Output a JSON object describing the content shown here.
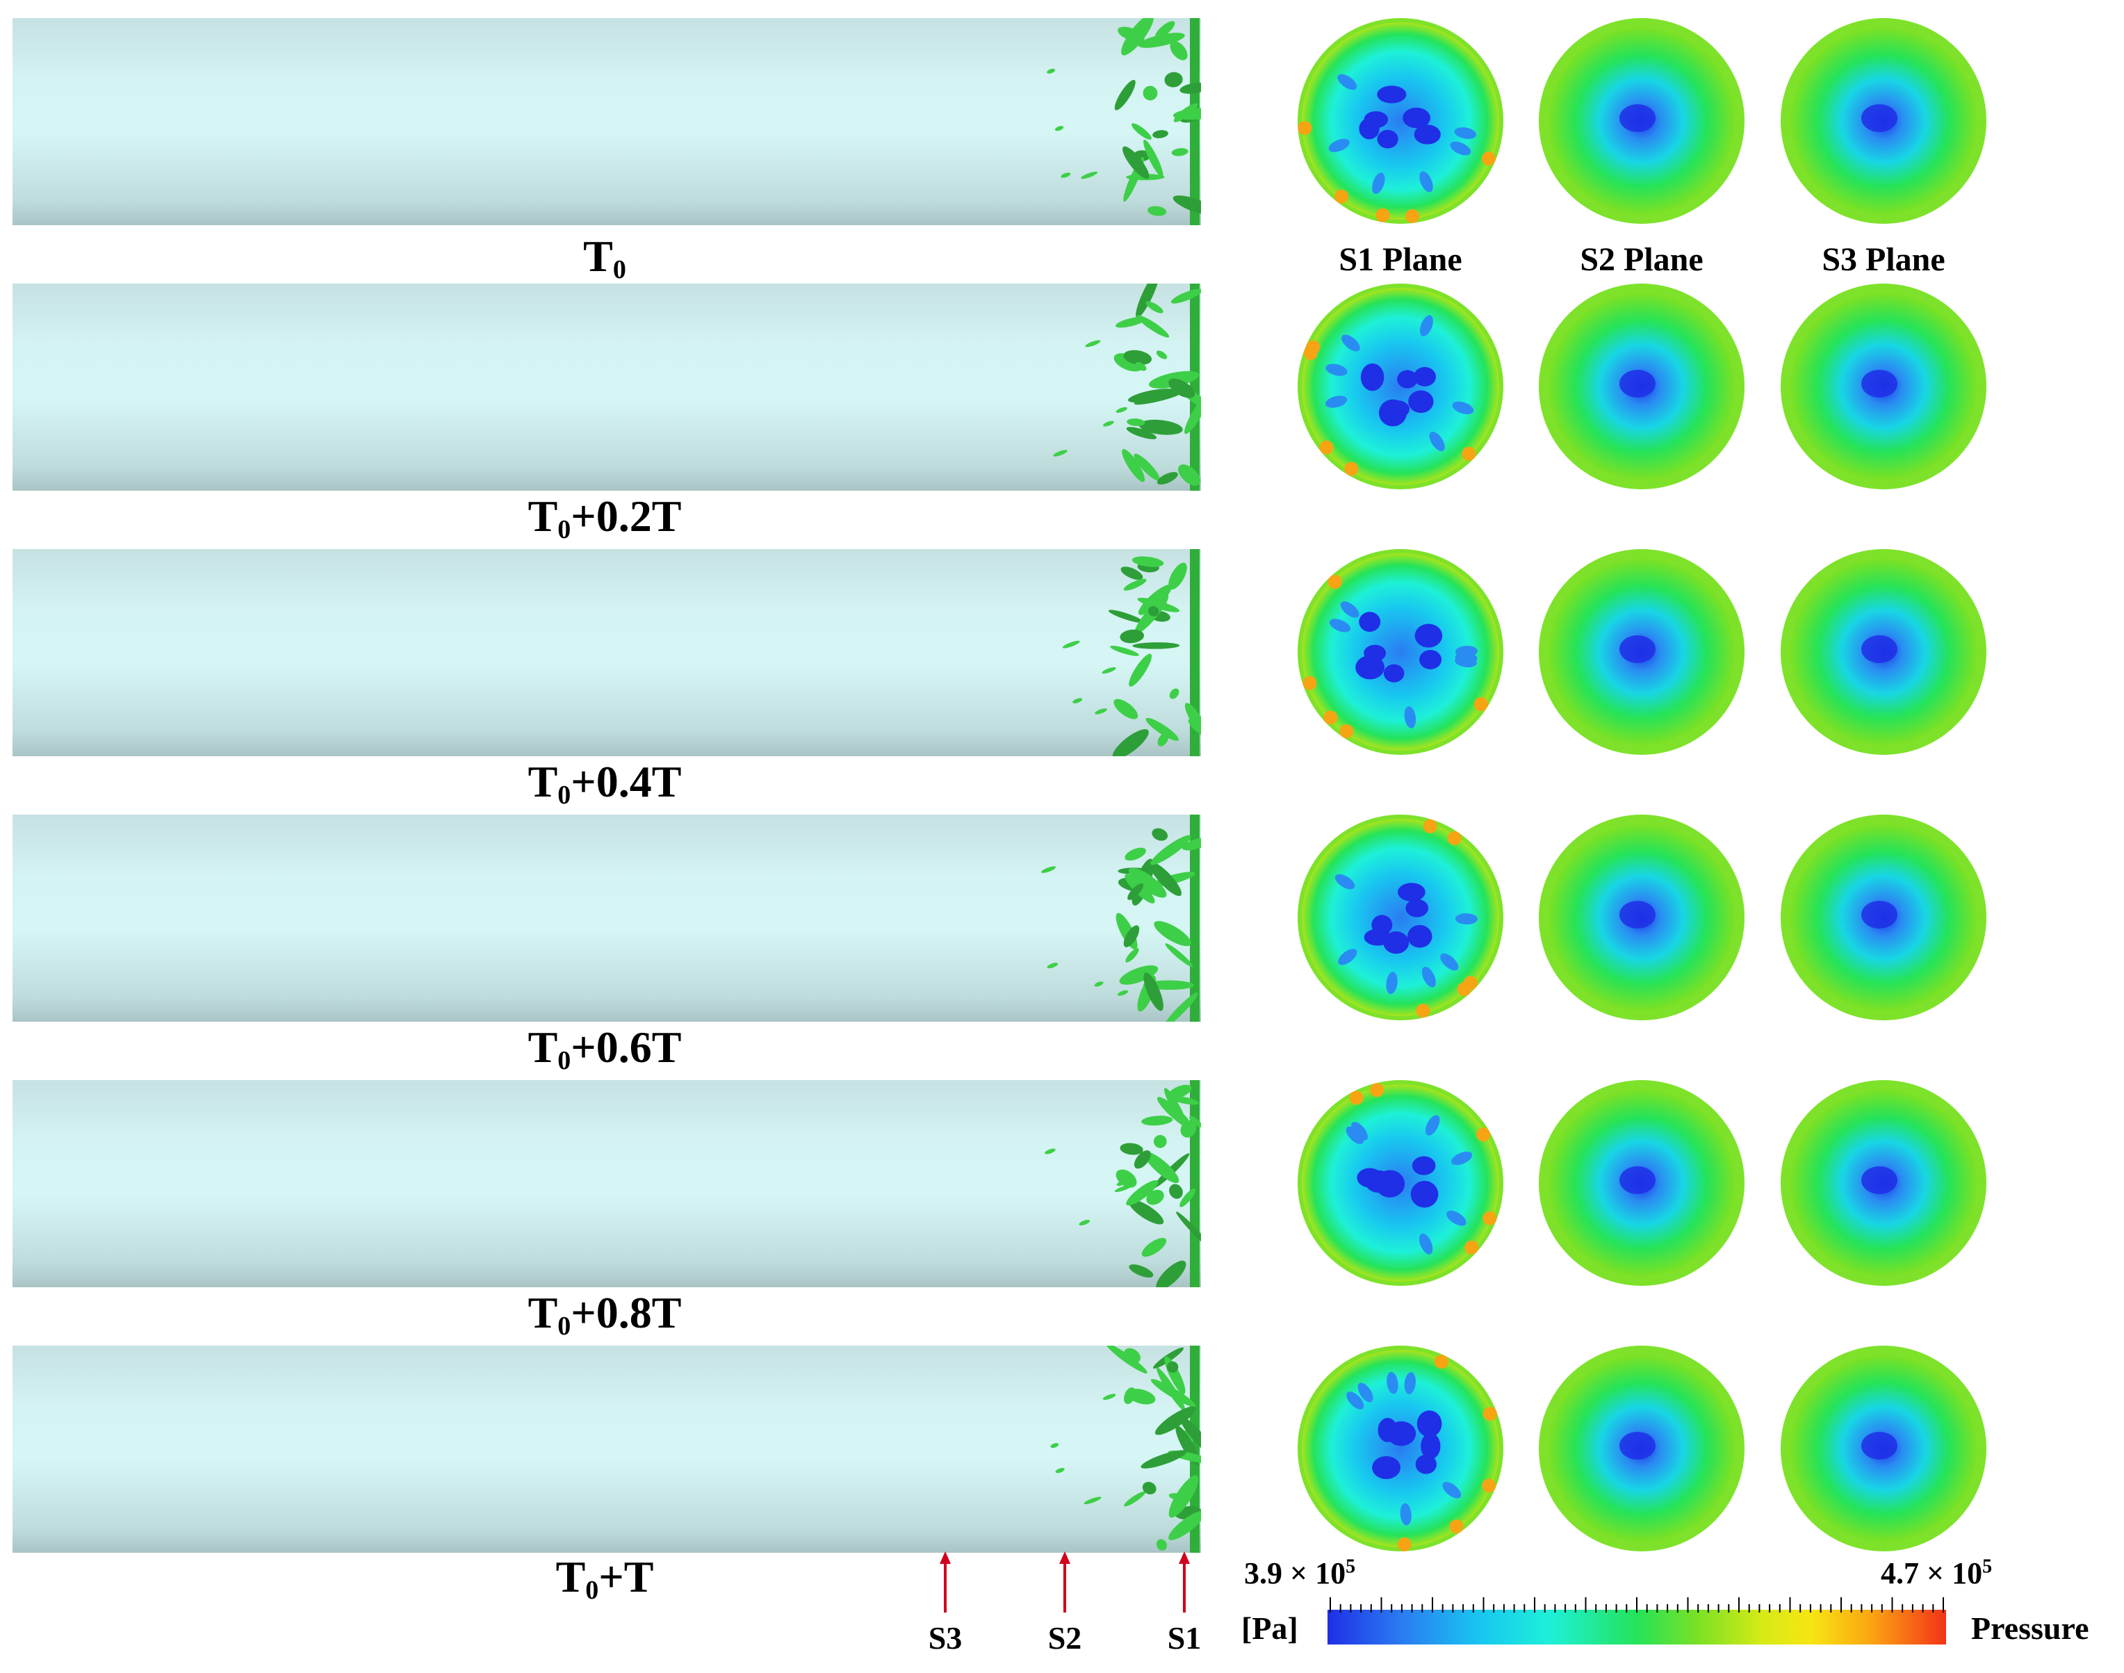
{
  "frames": [
    {
      "label_main": "T",
      "label_sub": "0",
      "label_rest": ""
    },
    {
      "label_main": "T",
      "label_sub": "0",
      "label_rest": "+0.2T"
    },
    {
      "label_main": "T",
      "label_sub": "0",
      "label_rest": "+0.4T"
    },
    {
      "label_main": "T",
      "label_sub": "0",
      "label_rest": "+0.6T"
    },
    {
      "label_main": "T",
      "label_sub": "0",
      "label_rest": "+0.8T"
    },
    {
      "label_main": "T",
      "label_sub": "0",
      "label_rest": "+T"
    }
  ],
  "planes": [
    "S1 Plane",
    "S2 Plane",
    "S3 Plane"
  ],
  "section_markers": [
    "S3",
    "S2",
    "S1"
  ],
  "colorbar": {
    "min_label": "3.9 × 10",
    "min_exp": "5",
    "max_label": "4.7 × 10",
    "max_exp": "5",
    "unit": "[Pa]",
    "title": "Pressure"
  },
  "colors": {
    "pipe": "#d4f3f3",
    "vortex": "#3ecf48",
    "low_pressure": "#1f2fe6",
    "mid_pressure": "#24e35a",
    "high_pressure": "#f23318",
    "arrow": "#d0021b"
  }
}
